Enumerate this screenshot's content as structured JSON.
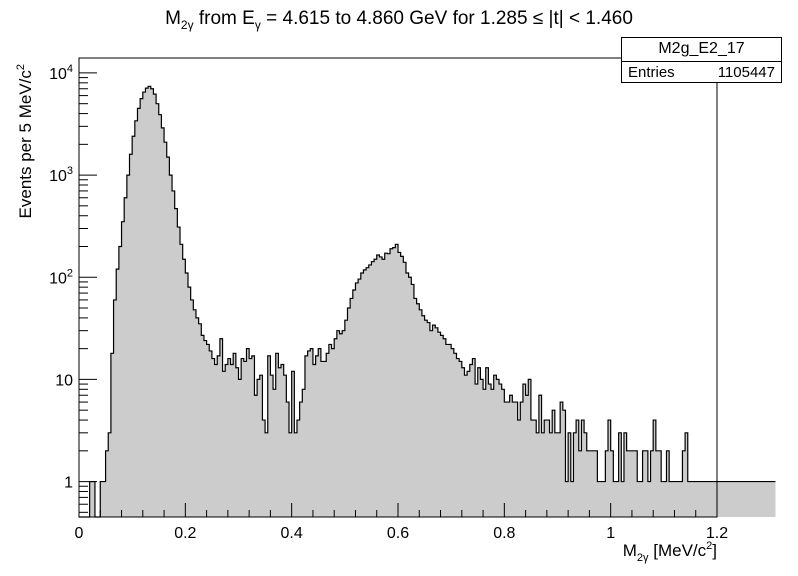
{
  "title": {
    "prefix": "M",
    "prefix_sub": "2γ",
    "mid1": " from E",
    "mid1_sub": "γ",
    "rest": " = 4.615 to 4.860 GeV for 1.285 ≤ |t| < 1.460"
  },
  "stats_box": {
    "name": "M2g_E2_17",
    "entries_label": "Entries",
    "entries_value": "1105447"
  },
  "colors": {
    "fill": "#cccccc",
    "line": "#000000"
  },
  "chart_data": {
    "type": "area",
    "histogram": true,
    "title": "M2γ from Eγ = 4.615 to 4.860 GeV for 1.285 ≤ |t| < 1.460",
    "xlabel": "M2γ [MeV/c2]",
    "ylabel": "Events per 5 MeV/c2",
    "xlim": [
      0,
      1.2
    ],
    "ylim": [
      0.45,
      14000
    ],
    "y_scale": "log",
    "grid": false,
    "legend": "none",
    "bin_width": 0.005,
    "x_ticks": [
      "0",
      "0.2",
      "0.4",
      "0.6",
      "0.8",
      "1",
      "1.2"
    ],
    "y_ticks": [
      "1",
      "10",
      "10^2",
      "10^3",
      "10^4"
    ],
    "series": [
      {
        "x_start": 0.0,
        "values": [
          0,
          0,
          0,
          0,
          1,
          1,
          0,
          0,
          1,
          1,
          2,
          3,
          18,
          60,
          120,
          200,
          350,
          600,
          1000,
          1600,
          2400,
          3400,
          4500,
          5600,
          6500,
          7100,
          7400,
          7000,
          6200,
          5000,
          3900,
          2900,
          2100,
          1500,
          1000,
          700,
          470,
          310,
          210,
          150,
          110,
          80,
          60,
          48,
          40,
          35,
          27,
          24,
          22,
          19,
          16,
          14,
          17,
          25,
          12,
          14,
          16,
          14,
          18,
          13,
          10,
          16,
          15,
          20,
          16,
          17,
          7,
          10,
          11,
          4,
          3,
          17,
          11,
          8,
          18,
          13,
          14,
          11,
          6,
          3,
          12,
          3,
          4,
          6,
          8,
          17,
          19,
          20,
          14,
          17,
          20,
          15,
          15,
          18,
          22,
          20,
          25,
          30,
          28,
          30,
          38,
          50,
          62,
          75,
          88,
          96,
          110,
          118,
          124,
          132,
          142,
          150,
          165,
          158,
          150,
          172,
          170,
          190,
          195,
          210,
          175,
          160,
          140,
          110,
          100,
          85,
          62,
          55,
          48,
          42,
          38,
          36,
          30,
          34,
          32,
          29,
          27,
          25,
          22,
          22,
          20,
          18,
          16,
          15,
          13,
          11,
          12,
          14,
          16,
          9,
          13,
          10,
          8,
          13,
          9,
          8,
          11,
          10,
          9,
          8,
          6,
          6,
          7,
          6,
          6,
          4,
          6,
          9,
          7,
          10,
          4,
          4,
          3,
          7,
          3,
          4,
          4,
          3,
          5,
          3,
          3,
          6,
          5,
          1,
          3,
          1,
          3,
          4,
          2,
          4,
          3,
          2,
          2,
          2,
          2,
          1,
          1,
          1,
          2,
          4,
          2,
          1,
          1,
          3,
          1,
          3,
          2,
          2,
          2,
          2,
          1,
          1,
          2,
          2,
          1,
          2,
          4,
          2,
          2,
          1,
          1,
          2,
          1,
          1,
          1,
          1,
          1,
          2,
          3,
          1,
          1,
          1,
          1,
          1,
          1,
          1,
          1,
          1,
          1,
          1,
          1,
          1,
          1,
          1,
          1,
          1,
          1,
          1,
          1,
          1,
          1,
          1,
          1,
          1,
          1,
          1,
          1,
          1,
          1,
          1,
          1,
          1
        ]
      }
    ]
  }
}
